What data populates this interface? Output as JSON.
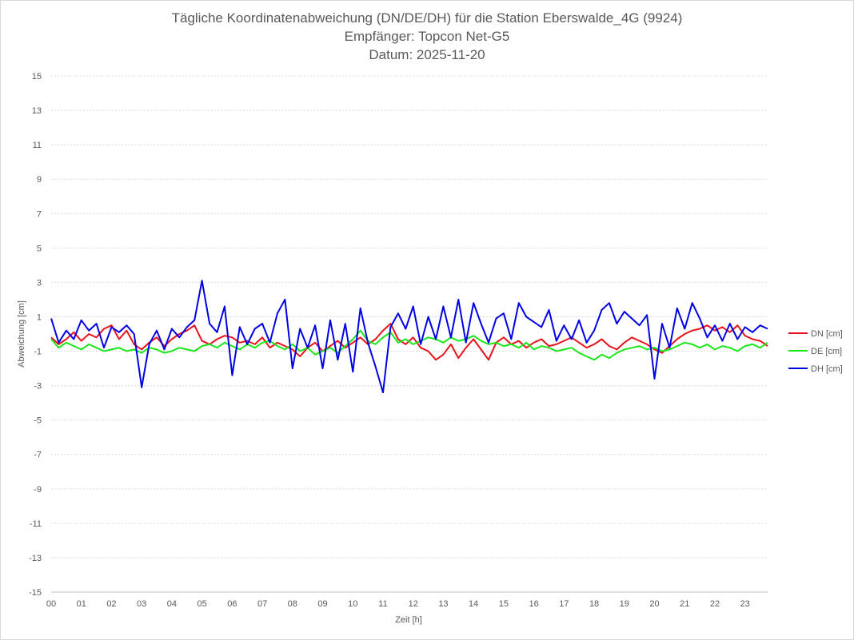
{
  "chart_data": {
    "type": "line",
    "title_lines": [
      "Tägliche Koordinatenabweichung (DN/DE/DH) für die Station Eberswalde_4G (9924)",
      "Empfänger: Topcon Net-G5",
      "Datum: 2025-11-20"
    ],
    "xlabel": "Zeit [h]",
    "ylabel": "Abweichung [cm]",
    "ylim": [
      -15,
      15
    ],
    "xlim": [
      0,
      23.75
    ],
    "x_tick_labels": [
      "00",
      "01",
      "02",
      "03",
      "04",
      "05",
      "06",
      "07",
      "08",
      "09",
      "10",
      "11",
      "12",
      "13",
      "14",
      "15",
      "16",
      "17",
      "18",
      "19",
      "20",
      "21",
      "22",
      "23"
    ],
    "y_tick_labels": [
      "15",
      "13",
      "11",
      "9",
      "7",
      "5",
      "3",
      "1",
      "-1",
      "-3",
      "-5",
      "-7",
      "-9",
      "-11",
      "-13",
      "-15"
    ],
    "y_tick_values": [
      15,
      13,
      11,
      9,
      7,
      5,
      3,
      1,
      -1,
      -3,
      -5,
      -7,
      -9,
      -11,
      -13,
      -15
    ],
    "grid": true,
    "legend_position": "right",
    "x": [
      0,
      0.25,
      0.5,
      0.75,
      1,
      1.25,
      1.5,
      1.75,
      2,
      2.25,
      2.5,
      2.75,
      3,
      3.25,
      3.5,
      3.75,
      4,
      4.25,
      4.5,
      4.75,
      5,
      5.25,
      5.5,
      5.75,
      6,
      6.25,
      6.5,
      6.75,
      7,
      7.25,
      7.5,
      7.75,
      8,
      8.25,
      8.5,
      8.75,
      9,
      9.25,
      9.5,
      9.75,
      10,
      10.25,
      10.5,
      10.75,
      11,
      11.25,
      11.5,
      11.75,
      12,
      12.25,
      12.5,
      12.75,
      13,
      13.25,
      13.5,
      13.75,
      14,
      14.25,
      14.5,
      14.75,
      15,
      15.25,
      15.5,
      15.75,
      16,
      16.25,
      16.5,
      16.75,
      17,
      17.25,
      17.5,
      17.75,
      18,
      18.25,
      18.5,
      18.75,
      19,
      19.25,
      19.5,
      19.75,
      20,
      20.25,
      20.5,
      20.75,
      21,
      21.25,
      21.5,
      21.75,
      22,
      22.25,
      22.5,
      22.75,
      23,
      23.25,
      23.5,
      23.75
    ],
    "series": [
      {
        "name": "DN [cm]",
        "color": "#e8121b",
        "values": [
          -0.2,
          -0.6,
          -0.3,
          0.1,
          -0.4,
          0.0,
          -0.2,
          0.3,
          0.5,
          -0.3,
          0.2,
          -0.6,
          -0.9,
          -0.5,
          -0.2,
          -0.7,
          -0.3,
          0.0,
          0.2,
          0.5,
          -0.4,
          -0.6,
          -0.3,
          -0.1,
          -0.2,
          -0.5,
          -0.4,
          -0.6,
          -0.2,
          -0.8,
          -0.5,
          -0.7,
          -0.9,
          -1.3,
          -0.8,
          -0.5,
          -1.0,
          -0.7,
          -0.4,
          -0.8,
          -0.5,
          -0.2,
          -0.6,
          -0.3,
          0.2,
          0.6,
          -0.3,
          -0.6,
          -0.2,
          -0.8,
          -1.0,
          -1.5,
          -1.2,
          -0.6,
          -1.4,
          -0.8,
          -0.3,
          -0.9,
          -1.5,
          -0.5,
          -0.2,
          -0.6,
          -0.4,
          -0.8,
          -0.5,
          -0.3,
          -0.7,
          -0.6,
          -0.4,
          -0.2,
          -0.5,
          -0.8,
          -0.6,
          -0.3,
          -0.7,
          -0.9,
          -0.5,
          -0.2,
          -0.4,
          -0.6,
          -0.9,
          -1.1,
          -0.7,
          -0.3,
          0.0,
          0.2,
          0.3,
          0.5,
          0.2,
          0.4,
          0.1,
          0.5,
          -0.1,
          -0.3,
          -0.4,
          -0.7
        ]
      },
      {
        "name": "DE [cm]",
        "color": "#19e619",
        "values": [
          -0.3,
          -0.8,
          -0.5,
          -0.7,
          -0.9,
          -0.6,
          -0.8,
          -1.0,
          -0.9,
          -0.8,
          -1.0,
          -0.9,
          -1.1,
          -0.8,
          -0.9,
          -1.1,
          -1.0,
          -0.8,
          -0.9,
          -1.0,
          -0.7,
          -0.6,
          -0.8,
          -0.5,
          -0.7,
          -0.9,
          -0.6,
          -0.8,
          -0.5,
          -0.4,
          -0.7,
          -0.9,
          -0.6,
          -1.0,
          -0.8,
          -1.2,
          -1.0,
          -0.8,
          -1.1,
          -0.7,
          -0.3,
          0.2,
          -0.4,
          -0.6,
          -0.2,
          0.1,
          -0.5,
          -0.3,
          -0.6,
          -0.4,
          -0.2,
          -0.3,
          -0.5,
          -0.2,
          -0.4,
          -0.3,
          -0.1,
          -0.4,
          -0.6,
          -0.5,
          -0.7,
          -0.6,
          -0.8,
          -0.5,
          -0.9,
          -0.7,
          -0.8,
          -1.0,
          -0.9,
          -0.8,
          -1.1,
          -1.3,
          -1.5,
          -1.2,
          -1.4,
          -1.1,
          -0.9,
          -0.8,
          -0.7,
          -0.9,
          -0.8,
          -1.0,
          -0.9,
          -0.7,
          -0.5,
          -0.6,
          -0.8,
          -0.6,
          -0.9,
          -0.7,
          -0.8,
          -1.0,
          -0.7,
          -0.6,
          -0.8,
          -0.5
        ]
      },
      {
        "name": "DH [cm]",
        "color": "#0000e6",
        "values": [
          0.9,
          -0.5,
          0.2,
          -0.3,
          0.8,
          0.2,
          0.6,
          -0.8,
          0.4,
          0.1,
          0.5,
          0.0,
          -3.1,
          -0.6,
          0.2,
          -0.9,
          0.3,
          -0.2,
          0.4,
          0.8,
          3.1,
          0.6,
          0.1,
          1.6,
          -2.4,
          0.4,
          -0.6,
          0.3,
          0.6,
          -0.5,
          1.2,
          2.0,
          -2.0,
          0.3,
          -0.8,
          0.5,
          -2.0,
          0.8,
          -1.5,
          0.6,
          -2.2,
          1.5,
          -0.5,
          -1.9,
          -3.4,
          0.4,
          1.2,
          0.3,
          1.6,
          -0.6,
          1.0,
          -0.3,
          1.6,
          -0.2,
          2.0,
          -0.5,
          1.8,
          0.6,
          -0.5,
          0.9,
          1.2,
          -0.3,
          1.8,
          1.0,
          0.7,
          0.4,
          1.4,
          -0.4,
          0.5,
          -0.3,
          0.8,
          -0.5,
          0.2,
          1.4,
          1.8,
          0.6,
          1.3,
          0.9,
          0.5,
          1.1,
          -2.6,
          0.6,
          -0.8,
          1.5,
          0.3,
          1.8,
          0.9,
          -0.2,
          0.5,
          -0.4,
          0.6,
          -0.3,
          0.4,
          0.1,
          0.5,
          0.3
        ]
      }
    ]
  }
}
